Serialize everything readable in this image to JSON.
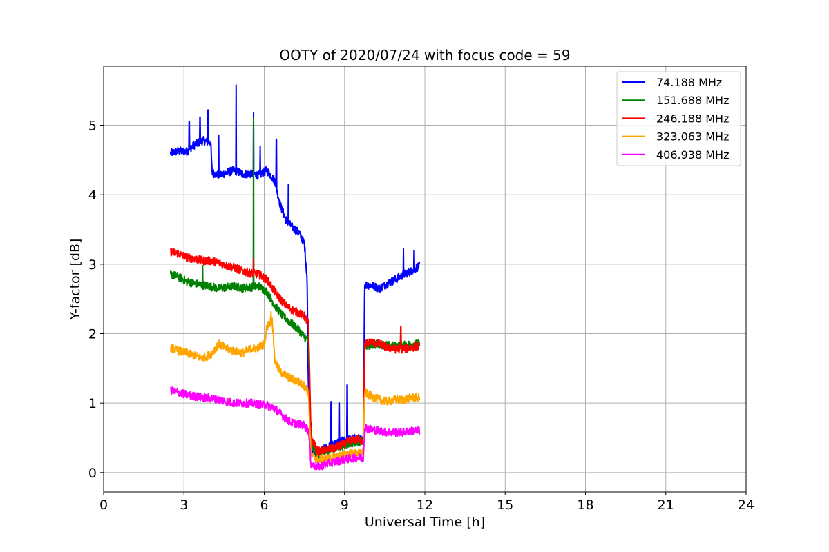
{
  "chart_data": {
    "type": "line",
    "title": "OOTY of 2020/07/24 with focus code = 59",
    "xlabel": "Universal Time [h]",
    "ylabel": "Y-factor [dB]",
    "xlim": [
      0,
      24
    ],
    "ylim": [
      -0.28,
      5.85
    ],
    "xticks": [
      0,
      3,
      6,
      9,
      12,
      15,
      18,
      21,
      24
    ],
    "yticks": [
      0,
      1,
      2,
      3,
      4,
      5
    ],
    "grid": true,
    "legend_position": "top-right",
    "series": [
      {
        "name": " 74.188 MHz",
        "color": "#0000ff",
        "points": [
          [
            2.5,
            4.6
          ],
          [
            2.8,
            4.63
          ],
          [
            3.1,
            4.62
          ],
          [
            3.4,
            4.72
          ],
          [
            3.7,
            4.78
          ],
          [
            4.0,
            4.75
          ],
          [
            4.05,
            4.32
          ],
          [
            4.3,
            4.28
          ],
          [
            4.6,
            4.32
          ],
          [
            4.9,
            4.35
          ],
          [
            5.2,
            4.3
          ],
          [
            5.5,
            4.3
          ],
          [
            5.8,
            4.28
          ],
          [
            6.1,
            4.35
          ],
          [
            6.4,
            4.2
          ],
          [
            6.6,
            3.85
          ],
          [
            6.8,
            3.65
          ],
          [
            7.0,
            3.55
          ],
          [
            7.3,
            3.45
          ],
          [
            7.5,
            3.3
          ],
          [
            7.6,
            2.8
          ],
          [
            7.65,
            1.2
          ],
          [
            7.8,
            0.3
          ],
          [
            8.0,
            0.28
          ],
          [
            8.3,
            0.35
          ],
          [
            8.6,
            0.4
          ],
          [
            8.9,
            0.45
          ],
          [
            9.2,
            0.48
          ],
          [
            9.5,
            0.5
          ],
          [
            9.7,
            0.45
          ],
          [
            9.75,
            2.7
          ],
          [
            10.0,
            2.7
          ],
          [
            10.3,
            2.65
          ],
          [
            10.6,
            2.72
          ],
          [
            10.9,
            2.78
          ],
          [
            11.2,
            2.85
          ],
          [
            11.5,
            2.9
          ],
          [
            11.8,
            2.98
          ]
        ],
        "spikes": [
          [
            3.2,
            5.05
          ],
          [
            3.6,
            5.12
          ],
          [
            3.9,
            5.22
          ],
          [
            4.3,
            4.85
          ],
          [
            4.95,
            5.58
          ],
          [
            5.6,
            5.18
          ],
          [
            5.85,
            4.7
          ],
          [
            6.45,
            4.8
          ],
          [
            6.9,
            4.15
          ],
          [
            8.5,
            1.02
          ],
          [
            8.8,
            1.0
          ],
          [
            9.1,
            1.26
          ],
          [
            11.2,
            3.22
          ],
          [
            11.6,
            3.2
          ]
        ]
      },
      {
        "name": "151.688 MHz",
        "color": "#008000",
        "points": [
          [
            2.5,
            2.85
          ],
          [
            2.8,
            2.82
          ],
          [
            3.1,
            2.75
          ],
          [
            3.4,
            2.72
          ],
          [
            3.7,
            2.7
          ],
          [
            4.0,
            2.68
          ],
          [
            4.3,
            2.65
          ],
          [
            4.6,
            2.67
          ],
          [
            4.9,
            2.68
          ],
          [
            5.2,
            2.66
          ],
          [
            5.5,
            2.67
          ],
          [
            5.8,
            2.68
          ],
          [
            6.1,
            2.6
          ],
          [
            6.4,
            2.4
          ],
          [
            6.7,
            2.25
          ],
          [
            7.0,
            2.15
          ],
          [
            7.3,
            2.05
          ],
          [
            7.5,
            1.95
          ],
          [
            7.65,
            1.9
          ],
          [
            7.75,
            0.4
          ],
          [
            8.0,
            0.25
          ],
          [
            8.3,
            0.3
          ],
          [
            8.6,
            0.35
          ],
          [
            8.9,
            0.38
          ],
          [
            9.2,
            0.42
          ],
          [
            9.5,
            0.45
          ],
          [
            9.7,
            0.45
          ],
          [
            9.75,
            1.82
          ],
          [
            10.0,
            1.84
          ],
          [
            10.3,
            1.85
          ],
          [
            10.6,
            1.83
          ],
          [
            10.9,
            1.82
          ],
          [
            11.2,
            1.83
          ],
          [
            11.5,
            1.85
          ],
          [
            11.8,
            1.85
          ]
        ],
        "spikes": [
          [
            3.7,
            2.98
          ],
          [
            5.6,
            5.1
          ],
          [
            11.1,
            2.05
          ]
        ]
      },
      {
        "name": "246.188 MHz",
        "color": "#ff0000",
        "points": [
          [
            2.5,
            3.18
          ],
          [
            2.8,
            3.15
          ],
          [
            3.1,
            3.1
          ],
          [
            3.4,
            3.08
          ],
          [
            3.7,
            3.05
          ],
          [
            4.0,
            3.05
          ],
          [
            4.3,
            3.02
          ],
          [
            4.6,
            2.98
          ],
          [
            4.9,
            2.95
          ],
          [
            5.2,
            2.9
          ],
          [
            5.5,
            2.87
          ],
          [
            5.8,
            2.85
          ],
          [
            6.1,
            2.78
          ],
          [
            6.4,
            2.6
          ],
          [
            6.7,
            2.45
          ],
          [
            7.0,
            2.35
          ],
          [
            7.3,
            2.3
          ],
          [
            7.5,
            2.25
          ],
          [
            7.65,
            2.15
          ],
          [
            7.75,
            0.5
          ],
          [
            8.0,
            0.3
          ],
          [
            8.3,
            0.33
          ],
          [
            8.6,
            0.35
          ],
          [
            8.9,
            0.4
          ],
          [
            9.2,
            0.45
          ],
          [
            9.5,
            0.48
          ],
          [
            9.7,
            0.45
          ],
          [
            9.75,
            1.85
          ],
          [
            10.0,
            1.88
          ],
          [
            10.3,
            1.85
          ],
          [
            10.6,
            1.8
          ],
          [
            10.9,
            1.78
          ],
          [
            11.2,
            1.78
          ],
          [
            11.5,
            1.8
          ],
          [
            11.8,
            1.82
          ]
        ],
        "spikes": [
          [
            5.6,
            3.08
          ],
          [
            11.1,
            2.1
          ]
        ]
      },
      {
        "name": "323.063 MHz",
        "color": "#ffa500",
        "points": [
          [
            2.5,
            1.8
          ],
          [
            2.8,
            1.75
          ],
          [
            3.1,
            1.72
          ],
          [
            3.4,
            1.68
          ],
          [
            3.7,
            1.65
          ],
          [
            4.0,
            1.7
          ],
          [
            4.3,
            1.85
          ],
          [
            4.6,
            1.78
          ],
          [
            4.9,
            1.75
          ],
          [
            5.2,
            1.72
          ],
          [
            5.5,
            1.78
          ],
          [
            5.8,
            1.8
          ],
          [
            6.0,
            1.85
          ],
          [
            6.1,
            2.1
          ],
          [
            6.3,
            2.2
          ],
          [
            6.4,
            1.6
          ],
          [
            6.6,
            1.45
          ],
          [
            6.8,
            1.4
          ],
          [
            7.0,
            1.35
          ],
          [
            7.3,
            1.3
          ],
          [
            7.5,
            1.25
          ],
          [
            7.65,
            1.15
          ],
          [
            7.75,
            0.25
          ],
          [
            8.0,
            0.18
          ],
          [
            8.3,
            0.2
          ],
          [
            8.6,
            0.22
          ],
          [
            8.9,
            0.25
          ],
          [
            9.2,
            0.28
          ],
          [
            9.5,
            0.28
          ],
          [
            9.7,
            0.3
          ],
          [
            9.75,
            1.15
          ],
          [
            10.0,
            1.1
          ],
          [
            10.3,
            1.05
          ],
          [
            10.6,
            1.02
          ],
          [
            10.9,
            1.05
          ],
          [
            11.2,
            1.05
          ],
          [
            11.5,
            1.08
          ],
          [
            11.8,
            1.08
          ]
        ],
        "spikes": [
          [
            6.25,
            2.32
          ]
        ]
      },
      {
        "name": "406.938 MHz",
        "color": "#ff00ff",
        "points": [
          [
            2.5,
            1.18
          ],
          [
            2.8,
            1.15
          ],
          [
            3.1,
            1.12
          ],
          [
            3.4,
            1.1
          ],
          [
            3.7,
            1.08
          ],
          [
            4.0,
            1.07
          ],
          [
            4.3,
            1.05
          ],
          [
            4.6,
            1.02
          ],
          [
            4.9,
            1.0
          ],
          [
            5.2,
            1.0
          ],
          [
            5.5,
            1.0
          ],
          [
            5.8,
            0.98
          ],
          [
            6.1,
            0.97
          ],
          [
            6.4,
            0.92
          ],
          [
            6.6,
            0.85
          ],
          [
            6.8,
            0.78
          ],
          [
            7.0,
            0.72
          ],
          [
            7.3,
            0.7
          ],
          [
            7.5,
            0.68
          ],
          [
            7.65,
            0.6
          ],
          [
            7.75,
            0.12
          ],
          [
            8.0,
            0.08
          ],
          [
            8.3,
            0.12
          ],
          [
            8.6,
            0.15
          ],
          [
            8.9,
            0.18
          ],
          [
            9.2,
            0.2
          ],
          [
            9.5,
            0.22
          ],
          [
            9.7,
            0.2
          ],
          [
            9.75,
            0.65
          ],
          [
            10.0,
            0.62
          ],
          [
            10.3,
            0.6
          ],
          [
            10.6,
            0.58
          ],
          [
            10.9,
            0.58
          ],
          [
            11.2,
            0.58
          ],
          [
            11.5,
            0.6
          ],
          [
            11.8,
            0.6
          ]
        ],
        "spikes": []
      }
    ]
  },
  "colors": {
    "axes": "#000000",
    "grid": "#b0b0b0",
    "background": "#ffffff"
  }
}
